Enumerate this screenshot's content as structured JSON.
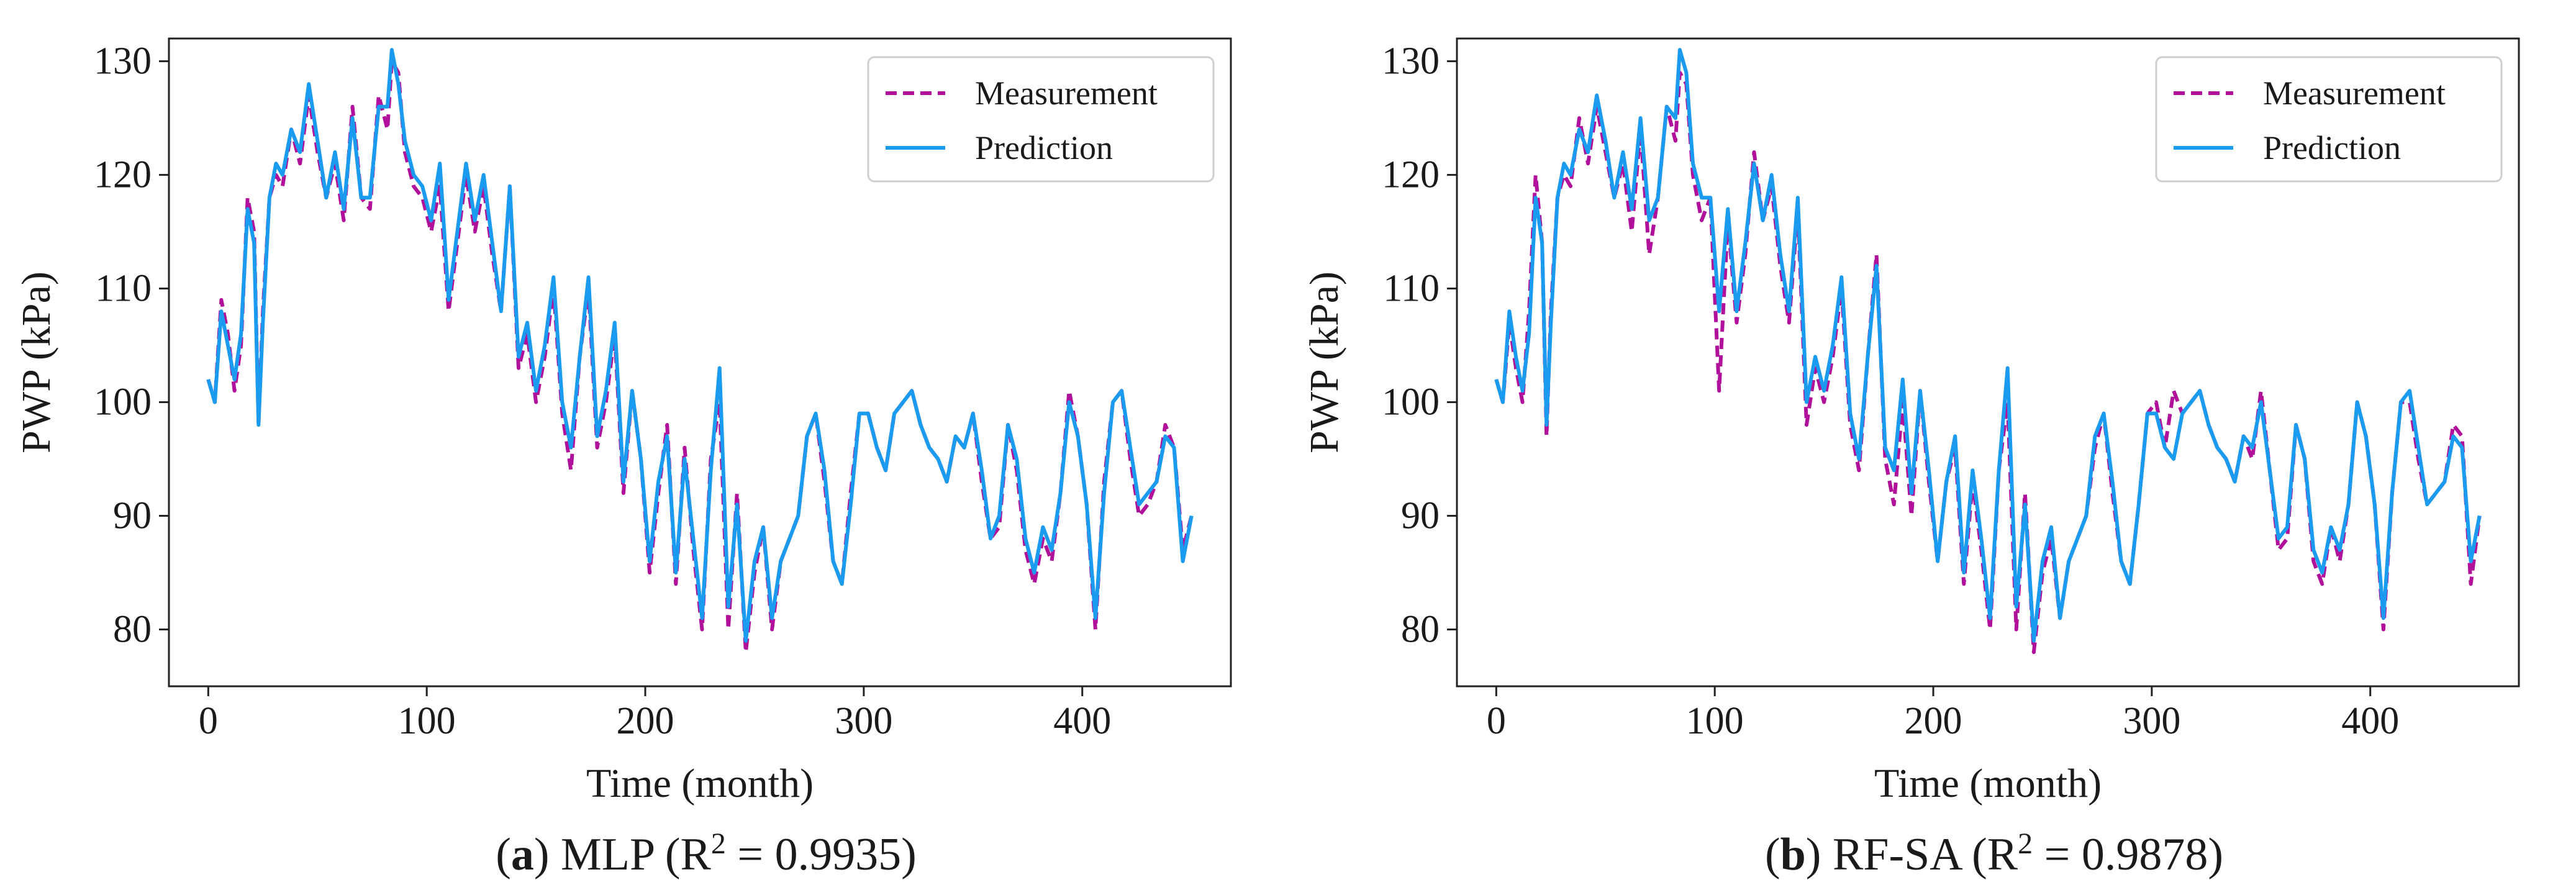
{
  "charts": [
    {
      "caption": {
        "letter": "a",
        "text": " MLP (R",
        "sup": "2",
        "tail": " = 0.9935)"
      }
    },
    {
      "caption": {
        "letter": "b",
        "text": " RF-SA (R",
        "sup": "2",
        "tail": " = 0.9878)"
      }
    }
  ],
  "chart_data": [
    {
      "type": "line",
      "title": "",
      "xlabel": "Time (month)",
      "ylabel": "PWP (kPa)",
      "xlim": [
        -18,
        468
      ],
      "ylim": [
        75,
        132
      ],
      "xticks": [
        0,
        100,
        200,
        300,
        400
      ],
      "yticks": [
        80,
        90,
        100,
        110,
        120,
        130
      ],
      "legend": "top-right",
      "colors": {
        "measurement": "#b0109a",
        "prediction": "#1a9bef"
      },
      "series": [
        {
          "name": "Measurement",
          "style": "dashed",
          "x": [
            0,
            3,
            6,
            9,
            12,
            15,
            18,
            21,
            23,
            25,
            28,
            31,
            34,
            38,
            42,
            46,
            50,
            54,
            58,
            62,
            66,
            70,
            74,
            78,
            82,
            84,
            87,
            90,
            94,
            98,
            102,
            106,
            110,
            114,
            118,
            122,
            126,
            130,
            134,
            138,
            142,
            146,
            150,
            154,
            158,
            162,
            166,
            170,
            174,
            178,
            182,
            186,
            190,
            194,
            198,
            202,
            206,
            210,
            214,
            218,
            222,
            226,
            230,
            234,
            238,
            242,
            246,
            250,
            254,
            258,
            262,
            266,
            270,
            274,
            278,
            282,
            286,
            290,
            294,
            298,
            302,
            306,
            310,
            314,
            318,
            322,
            326,
            330,
            334,
            338,
            342,
            346,
            350,
            354,
            358,
            362,
            366,
            370,
            374,
            378,
            382,
            386,
            390,
            394,
            398,
            402,
            406,
            410,
            414,
            418,
            422,
            426,
            430,
            434,
            438,
            442,
            446,
            450
          ],
          "y": [
            102,
            100,
            109,
            106,
            101,
            105,
            118,
            115,
            98,
            108,
            118,
            120,
            119,
            124,
            121,
            127,
            122,
            118,
            121,
            116,
            126,
            118,
            117,
            127,
            124,
            130,
            129,
            122,
            119,
            118,
            115,
            119,
            108,
            114,
            120,
            115,
            119,
            113,
            108,
            119,
            103,
            106,
            100,
            104,
            110,
            99,
            94,
            104,
            110,
            96,
            100,
            106,
            92,
            101,
            95,
            85,
            92,
            98,
            84,
            96,
            87,
            80,
            95,
            100,
            80,
            92,
            78,
            85,
            89,
            80,
            86,
            88,
            90,
            97,
            99,
            93,
            86,
            84,
            92,
            99,
            99,
            96,
            94,
            99,
            100,
            101,
            98,
            96,
            95,
            93,
            97,
            96,
            99,
            93,
            88,
            89,
            98,
            94,
            87,
            84,
            88,
            86,
            92,
            101,
            97,
            91,
            80,
            93,
            100,
            101,
            95,
            90,
            91,
            93,
            98,
            96,
            87,
            90
          ]
        },
        {
          "name": "Prediction",
          "style": "solid",
          "x": [
            0,
            3,
            6,
            9,
            12,
            15,
            18,
            21,
            23,
            25,
            28,
            31,
            34,
            38,
            42,
            46,
            50,
            54,
            58,
            62,
            66,
            70,
            74,
            78,
            82,
            84,
            87,
            90,
            94,
            98,
            102,
            106,
            110,
            114,
            118,
            122,
            126,
            130,
            134,
            138,
            142,
            146,
            150,
            154,
            158,
            162,
            166,
            170,
            174,
            178,
            182,
            186,
            190,
            194,
            198,
            202,
            206,
            210,
            214,
            218,
            222,
            226,
            230,
            234,
            238,
            242,
            246,
            250,
            254,
            258,
            262,
            266,
            270,
            274,
            278,
            282,
            286,
            290,
            294,
            298,
            302,
            306,
            310,
            314,
            318,
            322,
            326,
            330,
            334,
            338,
            342,
            346,
            350,
            354,
            358,
            362,
            366,
            370,
            374,
            378,
            382,
            386,
            390,
            394,
            398,
            402,
            406,
            410,
            414,
            418,
            422,
            426,
            430,
            434,
            438,
            442,
            446,
            450
          ],
          "y": [
            102,
            100,
            108,
            105,
            102,
            106,
            117,
            114,
            98,
            107,
            118,
            121,
            120,
            124,
            122,
            128,
            123,
            118,
            122,
            117,
            125,
            118,
            118,
            126,
            126,
            131,
            128,
            123,
            120,
            119,
            116,
            121,
            109,
            115,
            121,
            116,
            120,
            114,
            108,
            119,
            104,
            107,
            101,
            105,
            111,
            100,
            96,
            104,
            111,
            97,
            101,
            107,
            93,
            101,
            95,
            86,
            93,
            97,
            85,
            95,
            88,
            81,
            94,
            103,
            82,
            91,
            79,
            86,
            89,
            81,
            86,
            88,
            90,
            97,
            99,
            94,
            86,
            84,
            91,
            99,
            99,
            96,
            94,
            99,
            100,
            101,
            98,
            96,
            95,
            93,
            97,
            96,
            99,
            94,
            88,
            90,
            98,
            95,
            88,
            85,
            89,
            87,
            92,
            100,
            97,
            91,
            81,
            92,
            100,
            101,
            96,
            91,
            92,
            93,
            97,
            96,
            86,
            90
          ]
        }
      ]
    },
    {
      "type": "line",
      "title": "",
      "xlabel": "Time (month)",
      "ylabel": "PWP (kPa)",
      "xlim": [
        -18,
        468
      ],
      "ylim": [
        75,
        132
      ],
      "xticks": [
        0,
        100,
        200,
        300,
        400
      ],
      "yticks": [
        80,
        90,
        100,
        110,
        120,
        130
      ],
      "legend": "top-right",
      "colors": {
        "measurement": "#b0109a",
        "prediction": "#1a9bef"
      },
      "series": [
        {
          "name": "Measurement",
          "style": "dashed",
          "x": [
            0,
            3,
            6,
            9,
            12,
            15,
            18,
            21,
            23,
            25,
            28,
            31,
            34,
            38,
            42,
            46,
            50,
            54,
            58,
            62,
            66,
            70,
            74,
            78,
            82,
            84,
            87,
            90,
            94,
            98,
            102,
            106,
            110,
            114,
            118,
            122,
            126,
            130,
            134,
            138,
            142,
            146,
            150,
            154,
            158,
            162,
            166,
            170,
            174,
            178,
            182,
            186,
            190,
            194,
            198,
            202,
            206,
            210,
            214,
            218,
            222,
            226,
            230,
            234,
            238,
            242,
            246,
            250,
            254,
            258,
            262,
            266,
            270,
            274,
            278,
            282,
            286,
            290,
            294,
            298,
            302,
            306,
            310,
            314,
            318,
            322,
            326,
            330,
            334,
            338,
            342,
            346,
            350,
            354,
            358,
            362,
            366,
            370,
            374,
            378,
            382,
            386,
            390,
            394,
            398,
            402,
            406,
            410,
            414,
            418,
            422,
            426,
            430,
            434,
            438,
            442,
            446,
            450
          ],
          "y": [
            102,
            100,
            107,
            103,
            100,
            108,
            120,
            114,
            97,
            108,
            118,
            120,
            119,
            125,
            121,
            126,
            122,
            118,
            121,
            115,
            124,
            113,
            118,
            126,
            123,
            129,
            128,
            120,
            116,
            118,
            101,
            116,
            107,
            113,
            122,
            116,
            119,
            112,
            107,
            117,
            98,
            103,
            100,
            104,
            110,
            98,
            94,
            104,
            113,
            95,
            91,
            100,
            90,
            101,
            93,
            86,
            93,
            96,
            84,
            93,
            87,
            80,
            94,
            100,
            80,
            92,
            78,
            85,
            88,
            81,
            86,
            88,
            90,
            96,
            99,
            92,
            86,
            84,
            91,
            99,
            100,
            96,
            101,
            99,
            100,
            101,
            98,
            96,
            95,
            93,
            97,
            95,
            101,
            94,
            87,
            88,
            98,
            95,
            86,
            84,
            89,
            86,
            91,
            100,
            97,
            91,
            80,
            92,
            100,
            100,
            95,
            91,
            92,
            93,
            98,
            97,
            84,
            90
          ]
        },
        {
          "name": "Prediction",
          "style": "solid",
          "x": [
            0,
            3,
            6,
            9,
            12,
            15,
            18,
            21,
            23,
            25,
            28,
            31,
            34,
            38,
            42,
            46,
            50,
            54,
            58,
            62,
            66,
            70,
            74,
            78,
            82,
            84,
            87,
            90,
            94,
            98,
            102,
            106,
            110,
            114,
            118,
            122,
            126,
            130,
            134,
            138,
            142,
            146,
            150,
            154,
            158,
            162,
            166,
            170,
            174,
            178,
            182,
            186,
            190,
            194,
            198,
            202,
            206,
            210,
            214,
            218,
            222,
            226,
            230,
            234,
            238,
            242,
            246,
            250,
            254,
            258,
            262,
            266,
            270,
            274,
            278,
            282,
            286,
            290,
            294,
            298,
            302,
            306,
            310,
            314,
            318,
            322,
            326,
            330,
            334,
            338,
            342,
            346,
            350,
            354,
            358,
            362,
            366,
            370,
            374,
            378,
            382,
            386,
            390,
            394,
            398,
            402,
            406,
            410,
            414,
            418,
            422,
            426,
            430,
            434,
            438,
            442,
            446,
            450
          ],
          "y": [
            102,
            100,
            108,
            104,
            101,
            106,
            118,
            114,
            98,
            107,
            118,
            121,
            120,
            124,
            122,
            127,
            123,
            118,
            122,
            117,
            125,
            116,
            118,
            126,
            125,
            131,
            129,
            121,
            118,
            118,
            108,
            117,
            108,
            114,
            121,
            116,
            120,
            113,
            108,
            118,
            100,
            104,
            101,
            105,
            111,
            99,
            95,
            104,
            112,
            96,
            94,
            102,
            92,
            101,
            94,
            86,
            93,
            97,
            85,
            94,
            88,
            81,
            94,
            103,
            82,
            91,
            79,
            86,
            89,
            81,
            86,
            88,
            90,
            97,
            99,
            93,
            86,
            84,
            91,
            99,
            99,
            96,
            95,
            99,
            100,
            101,
            98,
            96,
            95,
            93,
            97,
            96,
            100,
            94,
            88,
            89,
            98,
            95,
            87,
            85,
            89,
            87,
            91,
            100,
            97,
            91,
            81,
            92,
            100,
            101,
            96,
            91,
            92,
            93,
            97,
            96,
            86,
            90
          ]
        }
      ]
    }
  ]
}
